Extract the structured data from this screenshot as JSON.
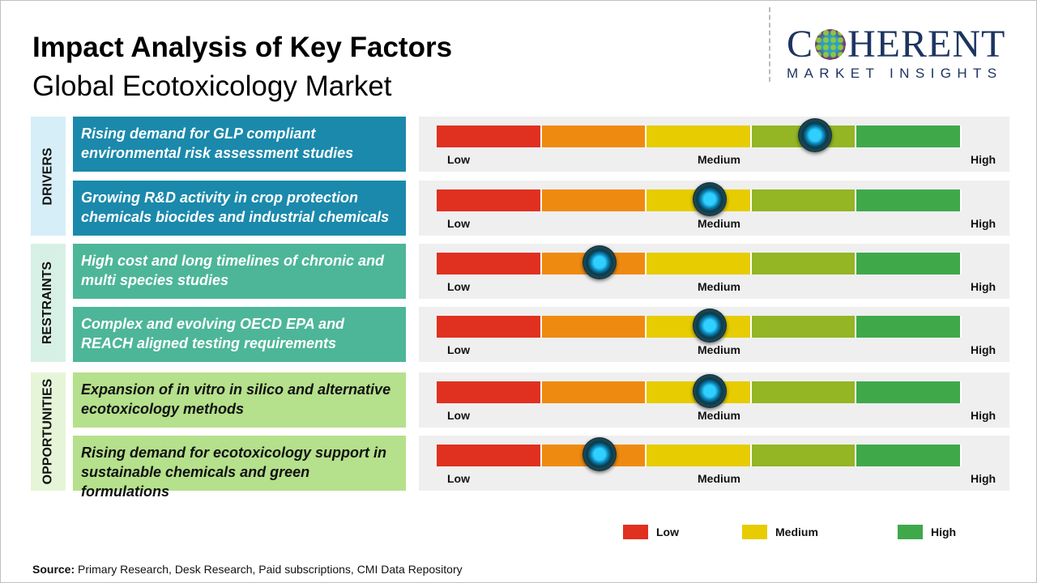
{
  "header": {
    "title": "Impact Analysis of Key Factors",
    "subtitle": "Global Ecotoxicology Market"
  },
  "logo": {
    "top": "COHERENT",
    "bottom": "MARKET INSIGHTS"
  },
  "colors": {
    "low": "#e03020",
    "low_medium": "#ef8a10",
    "medium": "#e6cc00",
    "medium_high": "#94b524",
    "high": "#3fa94a"
  },
  "sections": [
    {
      "label": "DRIVERS",
      "bg": "#d6eef8",
      "box_color": "#1b89ab",
      "text_color": "#ffffff"
    },
    {
      "label": "RESTRAINTS",
      "bg": "#d7f0e6",
      "box_color": "#4db698",
      "text_color": "#ffffff"
    },
    {
      "label": "OPPORTUNITIES",
      "bg": "#e6f5d8",
      "box_color": "#b5e08c",
      "text_color": "#111111"
    }
  ],
  "scale_labels": {
    "low": "Low",
    "medium": "Medium",
    "high": "High"
  },
  "chart_data": {
    "type": "gauge",
    "scale": [
      "Low",
      "Medium",
      "High"
    ],
    "range": [
      0,
      1
    ],
    "factors": [
      {
        "section": 0,
        "text": "Rising demand for GLP compliant environmental risk assessment studies",
        "level": 0.72
      },
      {
        "section": 0,
        "text": "Growing R&D activity in crop protection chemicals biocides and industrial chemicals",
        "level": 0.52
      },
      {
        "section": 1,
        "text": "High cost and long timelines of chronic and multi species studies",
        "level": 0.31
      },
      {
        "section": 1,
        "text": "Complex and evolving OECD EPA and REACH aligned testing requirements",
        "level": 0.52
      },
      {
        "section": 2,
        "text": "Expansion of in vitro in silico and alternative ecotoxicology methods",
        "level": 0.52
      },
      {
        "section": 2,
        "text": "Rising demand for ecotoxicology support in sustainable chemicals and green formulations",
        "level": 0.31
      }
    ]
  },
  "legend": [
    {
      "label": "Low",
      "color": "#e03020"
    },
    {
      "label": "Medium",
      "color": "#e6cc00"
    },
    {
      "label": "High",
      "color": "#3fa94a"
    }
  ],
  "footer": {
    "source_label": "Source:",
    "source_text": " Primary Research, Desk Research, Paid subscriptions, CMI Data Repository"
  }
}
